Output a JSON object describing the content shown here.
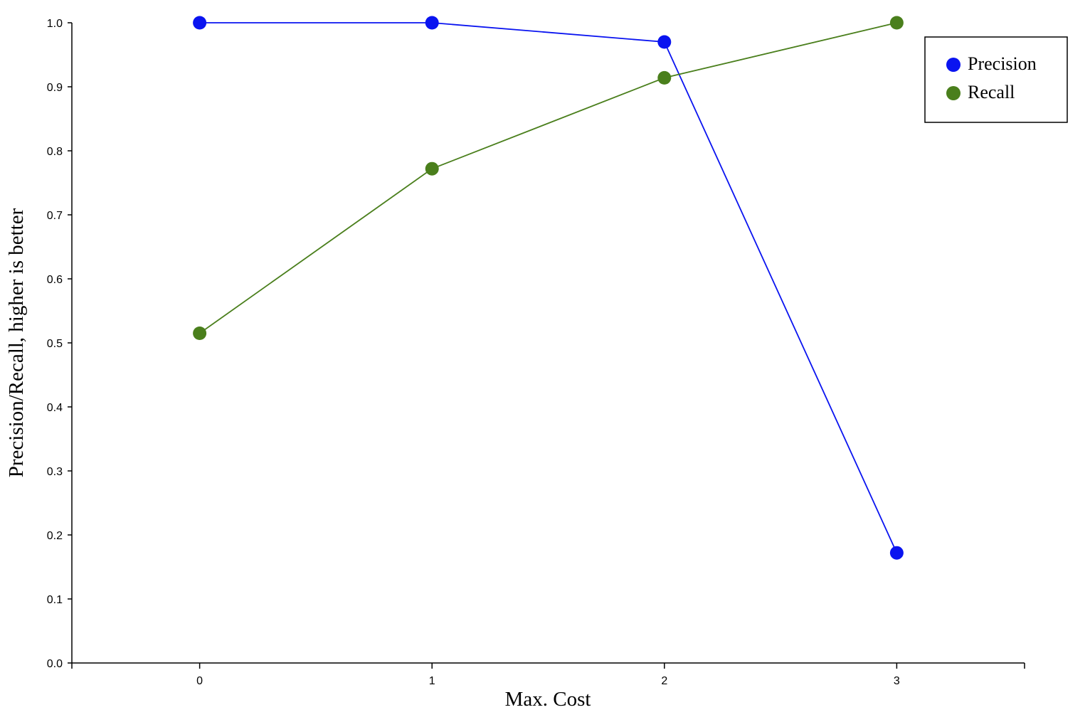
{
  "chart_data": {
    "type": "line",
    "xlabel": "Max. Cost",
    "ylabel": "Precision/Recall, higher is better",
    "x": [
      0,
      1,
      2,
      3
    ],
    "x_ticks": [
      "0",
      "1",
      "2",
      "3"
    ],
    "xlim": [
      -0.55,
      3.55
    ],
    "ylim": [
      0,
      1
    ],
    "y_ticks": [
      "0.0",
      "0.1",
      "0.2",
      "0.3",
      "0.4",
      "0.5",
      "0.6",
      "0.7",
      "0.8",
      "0.9",
      "1.0"
    ],
    "grid": false,
    "legend_position": "top-right",
    "series": [
      {
        "name": "Precision",
        "color": "#0a14f0",
        "values": [
          1.0,
          1.0,
          0.97,
          0.172
        ]
      },
      {
        "name": "Recall",
        "color": "#4a7f1c",
        "values": [
          0.515,
          0.772,
          0.914,
          1.0
        ]
      }
    ]
  }
}
